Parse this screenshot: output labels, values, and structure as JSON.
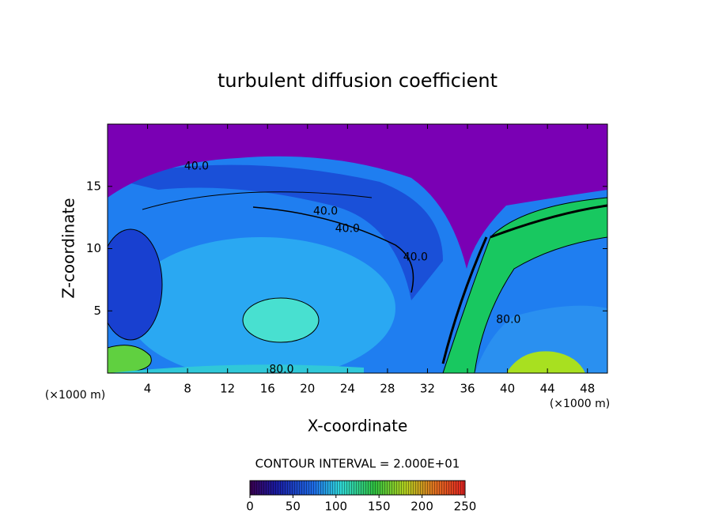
{
  "chart_data": {
    "type": "contour",
    "title": "turbulent diffusion coefficient",
    "xlabel": "X-coordinate",
    "ylabel": "Z-coordinate",
    "x_unit_label": "(×1000 m)",
    "y_unit_label": "(×1000 m)",
    "xlim": [
      0,
      50
    ],
    "ylim": [
      0,
      20
    ],
    "xticks": [
      4,
      8,
      12,
      16,
      20,
      24,
      28,
      32,
      36,
      40,
      44,
      48
    ],
    "yticks": [
      5,
      10,
      15
    ],
    "contour_labels": [
      {
        "x": 8.9,
        "y": 16.6,
        "value": 40,
        "label": "40.0"
      },
      {
        "x": 21.8,
        "y": 13.0,
        "value": 40,
        "label": "40.0"
      },
      {
        "x": 24.0,
        "y": 11.6,
        "value": 40,
        "label": "40.0"
      },
      {
        "x": 30.8,
        "y": 9.3,
        "value": 40,
        "label": "40.0"
      },
      {
        "x": 40.1,
        "y": 4.3,
        "value": 80,
        "label": "80.0"
      },
      {
        "x": 17.4,
        "y": 0.3,
        "value": 80,
        "label": "80.0"
      }
    ],
    "contour_interval_label": "CONTOUR INTERVAL = 2.000E+01",
    "colorbar": {
      "lim": [
        0,
        250
      ],
      "ticks": [
        0,
        50,
        100,
        150,
        200,
        250
      ]
    }
  }
}
